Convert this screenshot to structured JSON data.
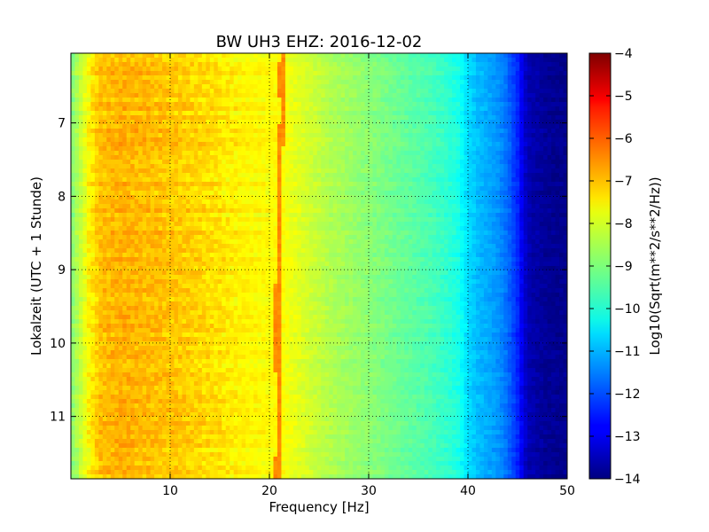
{
  "chart_data": {
    "type": "heatmap",
    "title": "BW UH3 EHZ: 2016-12-02",
    "xlabel": "Frequency [Hz]",
    "ylabel": "Lokalzeit (UTC + 1 Stunde)",
    "xlim": [
      0,
      50
    ],
    "ylim": [
      6.05,
      11.85
    ],
    "y_inverted": true,
    "x_ticks": [
      10,
      20,
      30,
      40,
      50
    ],
    "x_tick_labels": [
      "10",
      "20",
      "30",
      "40",
      "50"
    ],
    "y_ticks": [
      7,
      8,
      9,
      10,
      11
    ],
    "y_tick_labels": [
      "7",
      "8",
      "9",
      "10",
      "11"
    ],
    "grid": true,
    "colormap": "jet",
    "colorbar": {
      "label": "Log10(Sqrt(m**2/s**2/Hz))",
      "range": [
        -14,
        -4
      ],
      "ticks": [
        -4,
        -5,
        -6,
        -7,
        -8,
        -9,
        -10,
        -11,
        -12,
        -13,
        -14
      ],
      "tick_labels": [
        "−4",
        "−5",
        "−6",
        "−7",
        "−8",
        "−9",
        "−10",
        "−11",
        "−12",
        "−13",
        "−14"
      ]
    },
    "spectrum_profile": {
      "frequency_hz": [
        0,
        1,
        2,
        3,
        5,
        8,
        10,
        12,
        14,
        16,
        18,
        20,
        21,
        22,
        24,
        26,
        28,
        30,
        32,
        34,
        36,
        38,
        39,
        40,
        41,
        42,
        43,
        44,
        45,
        46,
        48,
        50
      ],
      "log10_amplitude": [
        -9.0,
        -8.3,
        -7.6,
        -7.15,
        -7.0,
        -7.1,
        -7.2,
        -7.3,
        -7.45,
        -7.6,
        -7.7,
        -7.75,
        -7.7,
        -7.9,
        -8.2,
        -8.5,
        -8.7,
        -8.9,
        -9.1,
        -9.3,
        -9.5,
        -9.8,
        -10.0,
        -10.6,
        -10.9,
        -11.1,
        -11.3,
        -11.7,
        -12.4,
        -13.5,
        -13.8,
        -13.9
      ]
    },
    "narrowband_line": {
      "log10_amplitude": -6.6,
      "time_h": [
        6.05,
        6.3,
        6.5,
        6.8,
        7.0,
        7.5,
        8.0,
        8.5,
        9.0,
        9.5,
        10.0,
        10.5,
        11.0,
        11.5,
        11.85
      ],
      "frequency_hz": [
        21.3,
        21.25,
        21.2,
        21.35,
        21.3,
        21.0,
        20.9,
        21.0,
        20.9,
        20.85,
        20.8,
        20.9,
        20.95,
        20.9,
        20.8
      ]
    }
  }
}
